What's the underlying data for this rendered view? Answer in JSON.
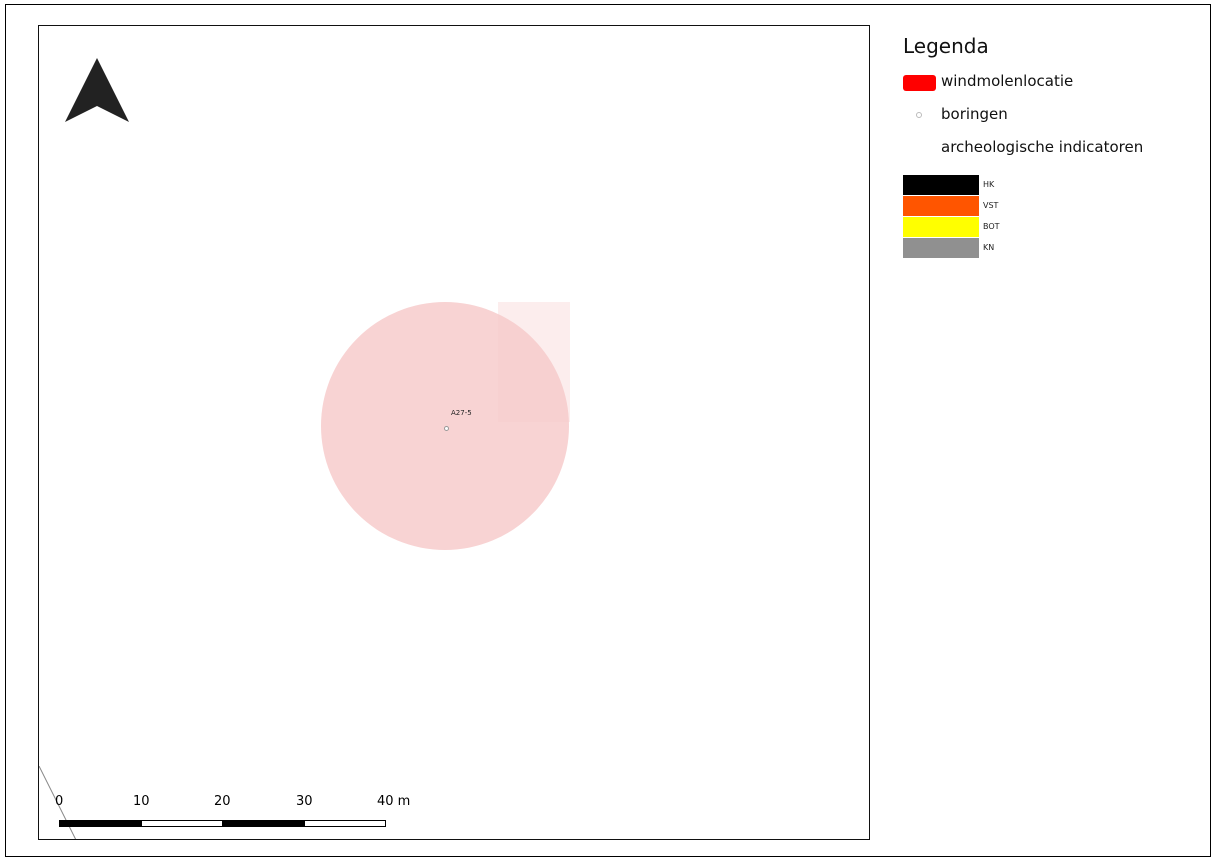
{
  "map": {
    "boring_label": "A27-5",
    "buffer_color": "#f8d3d3",
    "north_arrow_icon": "north-arrow-icon",
    "scalebar": {
      "unit": "m",
      "ticks": [
        "0",
        "10",
        "20",
        "30",
        "40 m"
      ]
    }
  },
  "legend": {
    "title": "Legenda",
    "items": [
      {
        "label": "windmolenlocatie",
        "color": "#ff0000"
      },
      {
        "label": "boringen",
        "icon": "small-circle-icon"
      },
      {
        "label": "archeologische indicatoren"
      }
    ],
    "indicators": [
      {
        "code": "HK",
        "color": "#000000"
      },
      {
        "code": "VST",
        "color": "#ff5500"
      },
      {
        "code": "BOT",
        "color": "#ffff00"
      },
      {
        "code": "KN",
        "color": "#909090"
      }
    ]
  }
}
